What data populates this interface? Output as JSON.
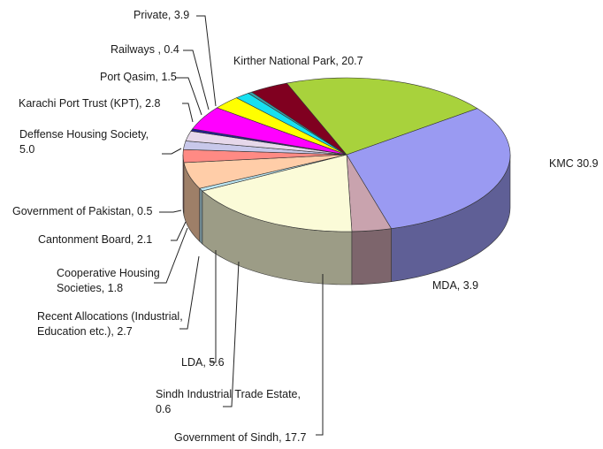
{
  "chart_data": {
    "type": "pie",
    "style": "3d",
    "title": "",
    "slices": [
      {
        "label": "KMC",
        "value": 30.9,
        "label_text": "KMC   30.9",
        "color": "#9a9af2"
      },
      {
        "label": "MDA",
        "value": 3.9,
        "label_text": "MDA, 3.9",
        "color": "#c9a3ae"
      },
      {
        "label": "Government of Sindh",
        "value": 17.7,
        "label_text": "Government of Sindh, 17.7",
        "color": "#fbfbd8"
      },
      {
        "label": "Sindh Industrial Trade Estate",
        "value": 0.6,
        "label_lines": [
          "Sindh Industrial Trade Estate,",
          "0.6"
        ],
        "color": "#b9e4f1"
      },
      {
        "label": "LDA",
        "value": 5.6,
        "label_text": "LDA, 5.6",
        "color": "#ffcda8"
      },
      {
        "label": "Recent Allocations (Industrial, Education etc.)",
        "value": 2.7,
        "label_lines": [
          "Recent Allocations (Industrial,",
          "Education etc.), 2.7"
        ],
        "color": "#ff8a84"
      },
      {
        "label": "Cooperative Housing Societies",
        "value": 1.8,
        "label_lines": [
          "Cooperative Housing",
          "Societies, 1.8"
        ],
        "color": "#c8c8ea"
      },
      {
        "label": "Cantonment Board",
        "value": 2.1,
        "label_text": "Cantonment Board, 2.1",
        "color": "#e6d8ea"
      },
      {
        "label": "Government of Pakistan",
        "value": 0.5,
        "label_text": "Government of Pakistan, 0.5",
        "color": "#23238f"
      },
      {
        "label": "Deffense Housing Society",
        "value": 5.0,
        "label_lines": [
          "Deffense Housing Society,",
          "5.0"
        ],
        "color": "#ff00ff"
      },
      {
        "label": "Karachi Port Trust (KPT)",
        "value": 2.8,
        "label_text": "Karachi Port Trust (KPT), 2.8",
        "color": "#ffff00"
      },
      {
        "label": "Port Qasim",
        "value": 1.5,
        "label_text": "Port Qasim, 1.5",
        "color": "#17e0f0"
      },
      {
        "label": "Railways",
        "value": 0.4,
        "label_text": "Railways , 0.4",
        "color": "#3aa0a8"
      },
      {
        "label": "Private",
        "value": 3.9,
        "label_text": "Private, 3.9",
        "color": "#800020"
      },
      {
        "label": "Kirther National Park",
        "value": 20.7,
        "label_text": "Kirther National Park, 20.7",
        "color": "#a8d23c"
      }
    ]
  }
}
